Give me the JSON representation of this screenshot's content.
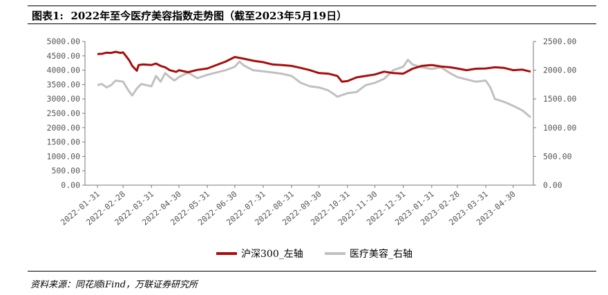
{
  "figure": {
    "title_prefix": "图表1:",
    "title_text": "2022年至今医疗美容指数走势图（截至2023年5月19日）",
    "source": "资料来源：同花顺iFind，万联证券研究所"
  },
  "colors": {
    "hs300": "#a80c0c",
    "medaesthetic": "#c0c0c0",
    "axis": "#777777"
  },
  "chart_data": {
    "type": "line",
    "title": "2022年至今医疗美容指数走势图（截至2023年5月19日）",
    "x_ticks": [
      "2022-01-31",
      "2022-02-28",
      "2022-03-31",
      "2022-04-30",
      "2022-05-31",
      "2022-06-30",
      "2022-07-31",
      "2022-08-31",
      "2022-09-30",
      "2022-10-31",
      "2022-11-30",
      "2022-12-31",
      "2023-01-31",
      "2023-02-28",
      "2023-03-31",
      "2023-04-30"
    ],
    "y_left": {
      "ticks": [
        "0.00",
        "500.00",
        "1000.00",
        "1500.00",
        "2000.00",
        "2500.00",
        "3000.00",
        "3500.00",
        "4000.00",
        "4500.00",
        "5000.00"
      ],
      "lim": [
        0,
        5000
      ]
    },
    "y_right": {
      "ticks": [
        "0.00",
        "500.00",
        "1000.00",
        "1500.00",
        "2000.00",
        "2500.00"
      ],
      "lim": [
        0,
        2500
      ]
    },
    "grid": false,
    "legend_position": "bottom",
    "series": [
      {
        "name": "沪深300_左轴",
        "axis": "left",
        "points": [
          [
            "2022-01-31",
            4560
          ],
          [
            "2022-02-05",
            4570
          ],
          [
            "2022-02-10",
            4610
          ],
          [
            "2022-02-15",
            4600
          ],
          [
            "2022-02-20",
            4640
          ],
          [
            "2022-02-25",
            4600
          ],
          [
            "2022-02-28",
            4620
          ],
          [
            "2022-03-03",
            4500
          ],
          [
            "2022-03-07",
            4330
          ],
          [
            "2022-03-10",
            4150
          ],
          [
            "2022-03-15",
            3980
          ],
          [
            "2022-03-17",
            4180
          ],
          [
            "2022-03-22",
            4200
          ],
          [
            "2022-03-31",
            4180
          ],
          [
            "2022-04-05",
            4230
          ],
          [
            "2022-04-10",
            4150
          ],
          [
            "2022-04-15",
            4100
          ],
          [
            "2022-04-20",
            4000
          ],
          [
            "2022-04-27",
            3940
          ],
          [
            "2022-04-30",
            4000
          ],
          [
            "2022-05-10",
            3930
          ],
          [
            "2022-05-20",
            4010
          ],
          [
            "2022-05-31",
            4060
          ],
          [
            "2022-06-10",
            4180
          ],
          [
            "2022-06-20",
            4300
          ],
          [
            "2022-06-30",
            4460
          ],
          [
            "2022-07-10",
            4400
          ],
          [
            "2022-07-20",
            4330
          ],
          [
            "2022-07-31",
            4280
          ],
          [
            "2022-08-10",
            4200
          ],
          [
            "2022-08-20",
            4180
          ],
          [
            "2022-08-31",
            4150
          ],
          [
            "2022-09-10",
            4080
          ],
          [
            "2022-09-20",
            4000
          ],
          [
            "2022-09-30",
            3900
          ],
          [
            "2022-10-10",
            3880
          ],
          [
            "2022-10-20",
            3800
          ],
          [
            "2022-10-25",
            3600
          ],
          [
            "2022-10-31",
            3620
          ],
          [
            "2022-11-10",
            3750
          ],
          [
            "2022-11-20",
            3800
          ],
          [
            "2022-11-30",
            3850
          ],
          [
            "2022-12-10",
            3950
          ],
          [
            "2022-12-20",
            3900
          ],
          [
            "2022-12-31",
            3880
          ],
          [
            "2023-01-10",
            4050
          ],
          [
            "2023-01-20",
            4150
          ],
          [
            "2023-01-31",
            4180
          ],
          [
            "2023-02-10",
            4130
          ],
          [
            "2023-02-20",
            4100
          ],
          [
            "2023-02-28",
            4060
          ],
          [
            "2023-03-10",
            4000
          ],
          [
            "2023-03-20",
            4050
          ],
          [
            "2023-03-31",
            4060
          ],
          [
            "2023-04-10",
            4100
          ],
          [
            "2023-04-20",
            4080
          ],
          [
            "2023-04-30",
            4000
          ],
          [
            "2023-05-10",
            4020
          ],
          [
            "2023-05-19",
            3950
          ]
        ]
      },
      {
        "name": "医疗美容_右轴",
        "axis": "right",
        "points": [
          [
            "2022-01-31",
            1740
          ],
          [
            "2022-02-05",
            1760
          ],
          [
            "2022-02-10",
            1700
          ],
          [
            "2022-02-15",
            1740
          ],
          [
            "2022-02-20",
            1820
          ],
          [
            "2022-02-28",
            1800
          ],
          [
            "2022-03-03",
            1720
          ],
          [
            "2022-03-07",
            1620
          ],
          [
            "2022-03-10",
            1560
          ],
          [
            "2022-03-15",
            1680
          ],
          [
            "2022-03-20",
            1760
          ],
          [
            "2022-03-31",
            1720
          ],
          [
            "2022-04-05",
            1900
          ],
          [
            "2022-04-10",
            1800
          ],
          [
            "2022-04-15",
            1950
          ],
          [
            "2022-04-20",
            1880
          ],
          [
            "2022-04-25",
            1820
          ],
          [
            "2022-04-30",
            1880
          ],
          [
            "2022-05-10",
            1960
          ],
          [
            "2022-05-20",
            1860
          ],
          [
            "2022-05-31",
            1920
          ],
          [
            "2022-06-10",
            1960
          ],
          [
            "2022-06-20",
            2000
          ],
          [
            "2022-06-30",
            2060
          ],
          [
            "2022-07-05",
            2150
          ],
          [
            "2022-07-10",
            2080
          ],
          [
            "2022-07-20",
            2000
          ],
          [
            "2022-07-31",
            1980
          ],
          [
            "2022-08-10",
            1960
          ],
          [
            "2022-08-20",
            1940
          ],
          [
            "2022-08-31",
            1900
          ],
          [
            "2022-09-10",
            1780
          ],
          [
            "2022-09-20",
            1720
          ],
          [
            "2022-09-30",
            1700
          ],
          [
            "2022-10-10",
            1650
          ],
          [
            "2022-10-20",
            1540
          ],
          [
            "2022-10-31",
            1600
          ],
          [
            "2022-11-10",
            1620
          ],
          [
            "2022-11-20",
            1740
          ],
          [
            "2022-11-30",
            1780
          ],
          [
            "2022-12-10",
            1850
          ],
          [
            "2022-12-20",
            2000
          ],
          [
            "2022-12-31",
            2060
          ],
          [
            "2023-01-05",
            2180
          ],
          [
            "2023-01-10",
            2100
          ],
          [
            "2023-01-20",
            2050
          ],
          [
            "2023-01-31",
            2020
          ],
          [
            "2023-02-10",
            2050
          ],
          [
            "2023-02-20",
            1950
          ],
          [
            "2023-02-28",
            1880
          ],
          [
            "2023-03-10",
            1840
          ],
          [
            "2023-03-20",
            1800
          ],
          [
            "2023-03-31",
            1820
          ],
          [
            "2023-04-05",
            1700
          ],
          [
            "2023-04-10",
            1500
          ],
          [
            "2023-04-20",
            1450
          ],
          [
            "2023-04-30",
            1380
          ],
          [
            "2023-05-10",
            1300
          ],
          [
            "2023-05-19",
            1180
          ]
        ]
      }
    ]
  }
}
